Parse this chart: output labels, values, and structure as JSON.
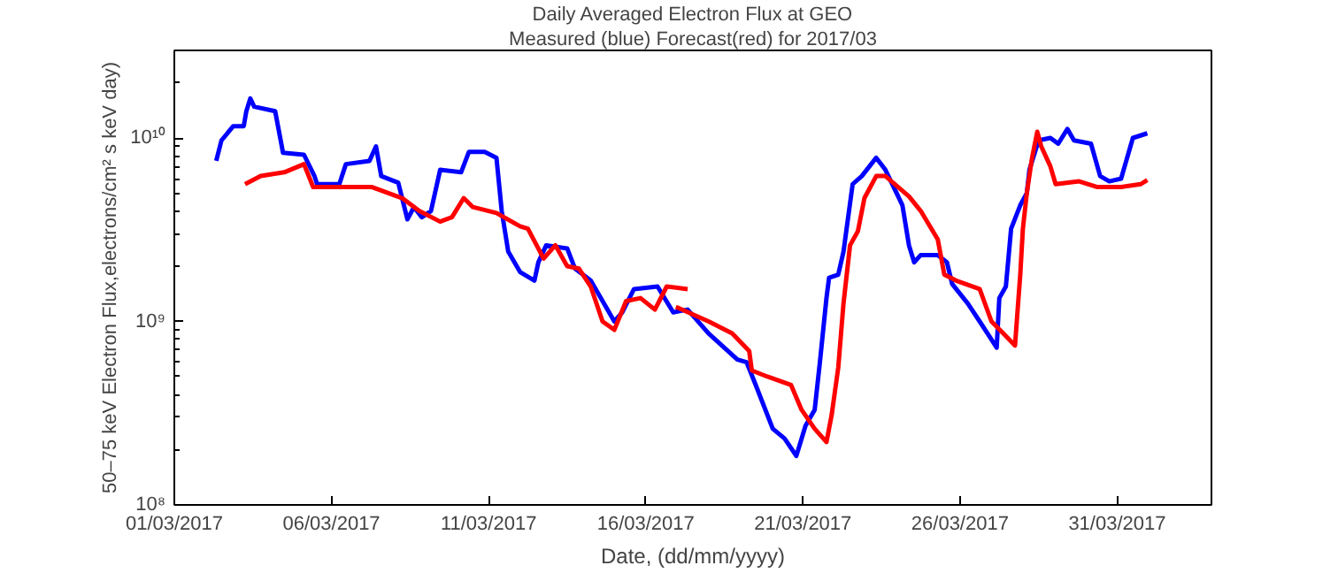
{
  "chart_data": {
    "type": "line",
    "title": "Daily Averaged Electron Flux at GEO",
    "subtitle": "Measured (blue) Forecast(red) for 2017/03",
    "xlabel": "Date, (dd/mm/yyyy)",
    "ylabel": "50–75 keV Electron Flux,electrons/cm² s keV day)",
    "log": "y",
    "grid": false,
    "line_style": "solid",
    "xlim": [
      "2017-03-01",
      "2017-04-03"
    ],
    "xticks": [
      {
        "value": "2017-03-01",
        "label": "01/03/2017"
      },
      {
        "value": "2017-03-06",
        "label": "06/03/2017"
      },
      {
        "value": "2017-03-11",
        "label": "11/03/2017"
      },
      {
        "value": "2017-03-16",
        "label": "16/03/2017"
      },
      {
        "value": "2017-03-21",
        "label": "21/03/2017"
      },
      {
        "value": "2017-03-26",
        "label": "26/03/2017"
      },
      {
        "value": "2017-03-31",
        "label": "31/03/2017"
      }
    ],
    "ylim": [
      100000000,
      30000000000
    ],
    "yticks": [
      {
        "value": 100000000,
        "label": "10⁸"
      },
      {
        "value": 1000000000,
        "label": "10⁹"
      },
      {
        "value": 10000000000,
        "label": "10¹⁰"
      }
    ],
    "series": [
      {
        "color": "#0000ff",
        "x": [
          "2017-03-02T08:00",
          "2017-03-02T12:00",
          "2017-03-02T21:00",
          "2017-03-03T05:00",
          "2017-03-03T07:00",
          "2017-03-03T10:00",
          "2017-03-03T13:00",
          "2017-03-04T05:00",
          "2017-03-04T11:00",
          "2017-03-05T03:00",
          "2017-03-05T11:00",
          "2017-03-05T13:00",
          "2017-03-06T06:00",
          "2017-03-06T11:00",
          "2017-03-07T05:00",
          "2017-03-07T10:00",
          "2017-03-07T14:00",
          "2017-03-08T03:00",
          "2017-03-08T10:00",
          "2017-03-08T15:00",
          "2017-03-08T21:00",
          "2017-03-09T04:00",
          "2017-03-09T11:00",
          "2017-03-10T03:00",
          "2017-03-10T09:00",
          "2017-03-10T21:00",
          "2017-03-11T06:00",
          "2017-03-11T10:00",
          "2017-03-11T15:00",
          "2017-03-12T00:00",
          "2017-03-12T11:00",
          "2017-03-12T14:00",
          "2017-03-12T20:00",
          "2017-03-13T12:00",
          "2017-03-13T18:00",
          "2017-03-14T06:00",
          "2017-03-15T00:00",
          "2017-03-15T06:00",
          "2017-03-15T15:00",
          "2017-03-16T09:00",
          "2017-03-16T21:00",
          "2017-03-17T08:00",
          "2017-03-18T00:00",
          "2017-03-18T22:00",
          "2017-03-19T05:00",
          "2017-03-19T12:00",
          "2017-03-20T01:00",
          "2017-03-20T10:00",
          "2017-03-20T19:00",
          "2017-03-21T02:00",
          "2017-03-21T09:00",
          "2017-03-21T13:00",
          "2017-03-21T18:00",
          "2017-03-21T20:00",
          "2017-03-22T03:00",
          "2017-03-22T07:00",
          "2017-03-22T14:00",
          "2017-03-22T21:00",
          "2017-03-23T08:00",
          "2017-03-23T15:00",
          "2017-03-24T04:00",
          "2017-03-24T09:00",
          "2017-03-24T13:00",
          "2017-03-24T18:00",
          "2017-03-25T07:00",
          "2017-03-25T14:00",
          "2017-03-25T18:00",
          "2017-03-26T06:00",
          "2017-03-26T15:00",
          "2017-03-26T21:00",
          "2017-03-27T04:00",
          "2017-03-27T06:00",
          "2017-03-27T11:00",
          "2017-03-27T15:00",
          "2017-03-27T22:00",
          "2017-03-28T03:00",
          "2017-03-28T05:00",
          "2017-03-28T12:00",
          "2017-03-28T21:00",
          "2017-03-29T03:00",
          "2017-03-29T10:00",
          "2017-03-29T15:00",
          "2017-03-30T04:00",
          "2017-03-30T11:00",
          "2017-03-30T18:00",
          "2017-03-31T03:00",
          "2017-03-31T12:00",
          "2017-03-31T23:00"
        ],
        "values": [
          7500000000.0,
          9700000000.0,
          11600000000.0,
          11600000000.0,
          14000000000.0,
          16400000000.0,
          14800000000.0,
          14000000000.0,
          8300000000.0,
          8100000000.0,
          6200000000.0,
          5600000000.0,
          5600000000.0,
          7200000000.0,
          7500000000.0,
          9000000000.0,
          6200000000.0,
          5700000000.0,
          3600000000.0,
          4200000000.0,
          3700000000.0,
          4000000000.0,
          6700000000.0,
          6500000000.0,
          8400000000.0,
          8400000000.0,
          7800000000.0,
          4000000000.0,
          2400000000.0,
          1860000000.0,
          1670000000.0,
          2100000000.0,
          2600000000.0,
          2500000000.0,
          1940000000.0,
          1670000000.0,
          1000000000.0,
          1120000000.0,
          1500000000.0,
          1550000000.0,
          1120000000.0,
          1160000000.0,
          860000000.0,
          620000000.0,
          600000000.0,
          450000000.0,
          260000000.0,
          230000000.0,
          185000000.0,
          270000000.0,
          330000000.0,
          600000000.0,
          1340000000.0,
          1730000000.0,
          1800000000.0,
          2400000000.0,
          5600000000.0,
          6200000000.0,
          7800000000.0,
          6700000000.0,
          4300000000.0,
          2600000000.0,
          2100000000.0,
          2300000000.0,
          2300000000.0,
          2100000000.0,
          1600000000.0,
          1250000000.0,
          1000000000.0,
          860000000.0,
          720000000.0,
          1340000000.0,
          1550000000.0,
          3200000000.0,
          4300000000.0,
          5000000000.0,
          6700000000.0,
          9700000000.0,
          10000000000.0,
          9300000000.0,
          11200000000.0,
          9700000000.0,
          9300000000.0,
          6200000000.0,
          5800000000.0,
          6000000000.0,
          10000000000.0,
          10600000000.0
        ]
      },
      {
        "color": "#ff0000",
        "x": [
          "2017-03-03T06:00",
          "2017-03-03T18:00",
          "2017-03-04T12:00",
          "2017-03-05T03:00",
          "2017-03-05T10:00",
          "2017-03-06T09:00",
          "2017-03-07T07:00",
          "2017-03-08T06:00",
          "2017-03-08T19:00",
          "2017-03-09T11:00",
          "2017-03-09T20:00",
          "2017-03-10T05:00",
          "2017-03-10T12:00",
          "2017-03-11T06:00",
          "2017-03-12T00:00",
          "2017-03-12T06:00",
          "2017-03-12T18:00",
          "2017-03-13T03:00",
          "2017-03-13T12:00",
          "2017-03-13T21:00",
          "2017-03-14T06:00",
          "2017-03-14T15:00",
          "2017-03-15T00:00",
          "2017-03-15T09:00",
          "2017-03-15T20:00",
          "2017-03-16T07:00",
          "2017-03-16T16:00",
          "2017-03-17T08:00"
        ],
        "values": [
          5600000000.0,
          6200000000.0,
          6500000000.0,
          7200000000.0,
          5400000000.0,
          5400000000.0,
          5400000000.0,
          4700000000.0,
          4000000000.0,
          3500000000.0,
          3700000000.0,
          4700000000.0,
          4200000000.0,
          3900000000.0,
          3300000000.0,
          3200000000.0,
          2200000000.0,
          2600000000.0,
          2000000000.0,
          1940000000.0,
          1550000000.0,
          1000000000.0,
          900000000.0,
          1290000000.0,
          1340000000.0,
          1160000000.0,
          1550000000.0,
          1500000000.0
        ]
      },
      {
        "color": "#ff0000",
        "x": [
          "2017-03-16T23:00",
          "2017-03-18T00:00",
          "2017-03-18T18:00",
          "2017-03-19T07:00",
          "2017-03-19T09:00",
          "2017-03-19T21:00",
          "2017-03-20T15:00",
          "2017-03-20T23:00",
          "2017-03-21T09:00",
          "2017-03-21T18:00",
          "2017-03-21T22:00",
          "2017-03-22T03:00",
          "2017-03-22T07:00",
          "2017-03-22T12:00",
          "2017-03-22T18:00",
          "2017-03-22T23:00",
          "2017-03-23T08:00",
          "2017-03-23T15:00",
          "2017-03-24T09:00",
          "2017-03-24T18:00",
          "2017-03-25T07:00",
          "2017-03-25T12:00",
          "2017-03-25T21:00",
          "2017-03-26T15:00",
          "2017-03-27T00:00",
          "2017-03-27T09:00",
          "2017-03-27T18:00",
          "2017-03-27T20:00",
          "2017-03-27T22:00",
          "2017-03-28T00:00",
          "2017-03-28T03:00",
          "2017-03-28T07:00",
          "2017-03-28T11:00",
          "2017-03-28T14:00",
          "2017-03-28T21:00",
          "2017-03-29T01:00",
          "2017-03-29T19:00",
          "2017-03-30T09:00",
          "2017-03-31T03:00",
          "2017-03-31T18:00",
          "2017-03-31T23:00"
        ],
        "values": [
          1200000000.0,
          1000000000.0,
          860000000.0,
          690000000.0,
          540000000.0,
          500000000.0,
          450000000.0,
          330000000.0,
          260000000.0,
          220000000.0,
          310000000.0,
          560000000.0,
          1250000000.0,
          2600000000.0,
          3100000000.0,
          4700000000.0,
          6200000000.0,
          6200000000.0,
          4800000000.0,
          4000000000.0,
          2800000000.0,
          1800000000.0,
          1670000000.0,
          1500000000.0,
          1000000000.0,
          860000000.0,
          740000000.0,
          1160000000.0,
          1800000000.0,
          3200000000.0,
          5000000000.0,
          7800000000.0,
          10800000000.0,
          9000000000.0,
          7000000000.0,
          5600000000.0,
          5800000000.0,
          5400000000.0,
          5400000000.0,
          5600000000.0,
          5900000000.0
        ]
      }
    ]
  }
}
